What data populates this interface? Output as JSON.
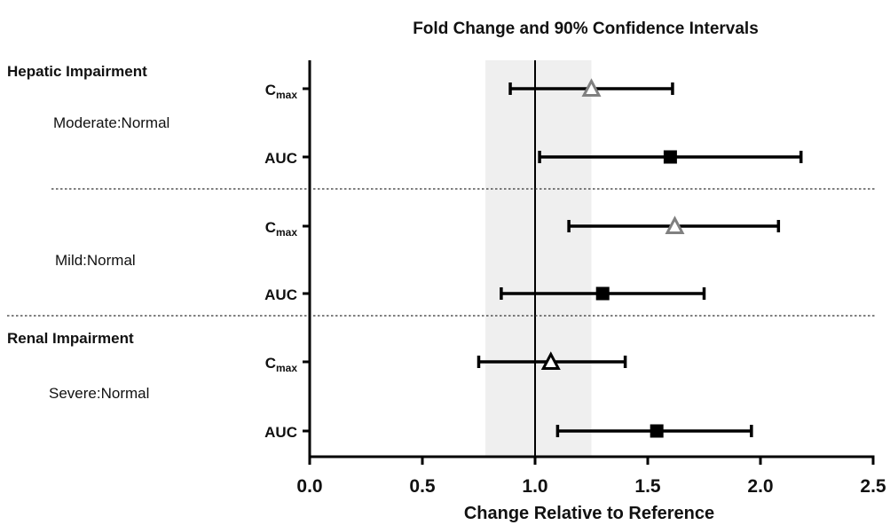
{
  "chart_data": {
    "type": "forest",
    "title": "Fold Change and 90% Confidence Intervals",
    "xlabel": "Change Relative to Reference",
    "xlim": [
      0,
      2.5
    ],
    "xticks": [
      "0.0",
      "0.5",
      "1.0",
      "1.5",
      "2.0",
      "2.5"
    ],
    "reference_line": 1.0,
    "reference_band": [
      0.78,
      1.25
    ],
    "groups": [
      {
        "label": "Hepatic Impairment",
        "comparisons": [
          {
            "label": "Moderate:Normal",
            "rows": [
              {
                "param": "C",
                "sub": "max",
                "estimate": 1.25,
                "lower": 0.89,
                "upper": 1.61,
                "marker": "triangle",
                "color": "#808080"
              },
              {
                "param": "AUC",
                "sub": "",
                "estimate": 1.6,
                "lower": 1.02,
                "upper": 2.18,
                "marker": "square",
                "color": "#000000"
              }
            ]
          },
          {
            "label": "Mild:Normal",
            "rows": [
              {
                "param": "C",
                "sub": "max",
                "estimate": 1.62,
                "lower": 1.15,
                "upper": 2.08,
                "marker": "triangle",
                "color": "#808080"
              },
              {
                "param": "AUC",
                "sub": "",
                "estimate": 1.3,
                "lower": 0.85,
                "upper": 1.75,
                "marker": "square",
                "color": "#000000"
              }
            ]
          }
        ]
      },
      {
        "label": "Renal Impairment",
        "comparisons": [
          {
            "label": "Severe:Normal",
            "rows": [
              {
                "param": "C",
                "sub": "max",
                "estimate": 1.07,
                "lower": 0.75,
                "upper": 1.4,
                "marker": "triangle",
                "color": "#000000"
              },
              {
                "param": "AUC",
                "sub": "",
                "estimate": 1.54,
                "lower": 1.1,
                "upper": 1.96,
                "marker": "square",
                "color": "#000000"
              }
            ]
          }
        ]
      }
    ]
  }
}
